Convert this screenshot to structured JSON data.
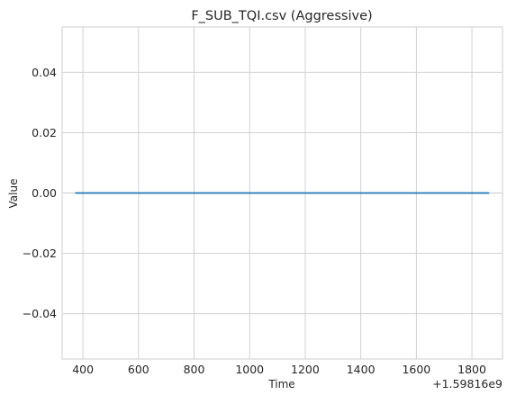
{
  "chart_data": {
    "type": "line",
    "title": "F_SUB_TQI.csv (Aggressive)",
    "xlabel": "Time",
    "ylabel": "Value",
    "x_offset_label": "+1.59816e9",
    "xlim": [
      325,
      1910
    ],
    "ylim": [
      -0.055,
      0.055
    ],
    "x_ticks": [
      400,
      600,
      800,
      1000,
      1200,
      1400,
      1600,
      1800
    ],
    "x_tick_labels": [
      "400",
      "600",
      "800",
      "1000",
      "1200",
      "1400",
      "1600",
      "1800"
    ],
    "y_ticks": [
      -0.04,
      -0.02,
      0.0,
      0.02,
      0.04
    ],
    "y_tick_labels": [
      "−0.04",
      "−0.02",
      "0.00",
      "0.02",
      "0.04"
    ],
    "grid": true,
    "series": [
      {
        "color": "#1f77b4",
        "x": [
          372,
          1862
        ],
        "y": [
          0.0,
          0.0
        ]
      }
    ]
  }
}
